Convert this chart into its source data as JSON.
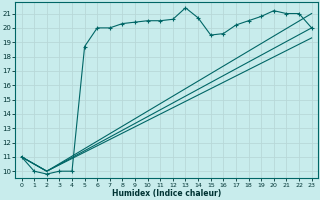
{
  "xlabel": "Humidex (Indice chaleur)",
  "bg_color": "#c8ecec",
  "grid_color": "#aad4d4",
  "line_color": "#006666",
  "xlim": [
    -0.5,
    23.5
  ],
  "ylim": [
    9.5,
    21.8
  ],
  "xticks": [
    0,
    1,
    2,
    3,
    4,
    5,
    6,
    7,
    8,
    9,
    10,
    11,
    12,
    13,
    14,
    15,
    16,
    17,
    18,
    19,
    20,
    21,
    22,
    23
  ],
  "yticks": [
    10,
    11,
    12,
    13,
    14,
    15,
    16,
    17,
    18,
    19,
    20,
    21
  ],
  "line1_x": [
    0,
    1,
    2,
    3,
    4,
    5,
    6,
    7,
    8,
    9,
    10,
    11,
    12,
    13,
    14,
    15,
    16,
    17,
    18,
    19,
    20,
    21,
    22,
    23
  ],
  "line1_y": [
    11,
    10,
    9.8,
    10,
    10,
    18.7,
    20.0,
    20.0,
    20.3,
    20.4,
    20.5,
    20.5,
    20.6,
    21.4,
    20.7,
    19.5,
    19.6,
    20.2,
    20.5,
    20.8,
    21.2,
    21.0,
    21.0,
    20.0
  ],
  "line2_x": [
    0,
    2,
    23
  ],
  "line2_y": [
    11,
    10,
    21.0
  ],
  "line3_x": [
    0,
    2,
    23
  ],
  "line3_y": [
    11,
    10,
    20.0
  ],
  "line4_x": [
    0,
    2,
    23
  ],
  "line4_y": [
    11,
    10,
    19.3
  ]
}
